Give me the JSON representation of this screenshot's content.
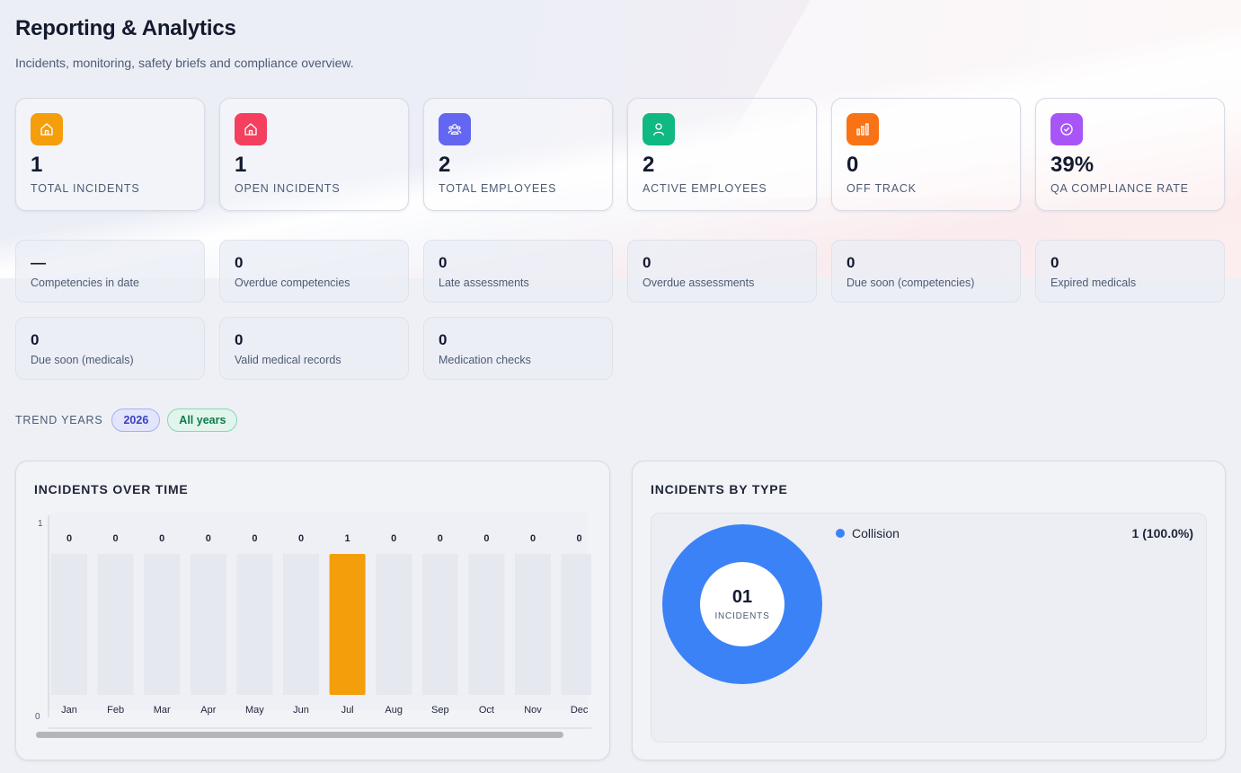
{
  "page": {
    "title": "Reporting & Analytics",
    "subtitle": "Incidents, monitoring, safety briefs and compliance overview."
  },
  "stats": [
    {
      "value": "1",
      "label": "TOTAL INCIDENTS",
      "icon": "house-icon",
      "color": "#f59e0b"
    },
    {
      "value": "1",
      "label": "OPEN INCIDENTS",
      "icon": "house-icon",
      "color": "#f43f5e"
    },
    {
      "value": "2",
      "label": "TOTAL EMPLOYEES",
      "icon": "users-icon",
      "color": "#6366f1"
    },
    {
      "value": "2",
      "label": "ACTIVE EMPLOYEES",
      "icon": "user-icon",
      "color": "#10b981"
    },
    {
      "value": "0",
      "label": "OFF TRACK",
      "icon": "bar-chart-icon",
      "color": "#f97316"
    },
    {
      "value": "39%",
      "label": "QA COMPLIANCE RATE",
      "icon": "check-circle-icon",
      "color": "#a855f7"
    }
  ],
  "metrics": [
    {
      "value": "—",
      "label": "Competencies in date"
    },
    {
      "value": "0",
      "label": "Overdue competencies"
    },
    {
      "value": "0",
      "label": "Late assessments"
    },
    {
      "value": "0",
      "label": "Overdue assessments"
    },
    {
      "value": "0",
      "label": "Due soon (competencies)"
    },
    {
      "value": "0",
      "label": "Expired medicals"
    },
    {
      "value": "0",
      "label": "Due soon (medicals)"
    },
    {
      "value": "0",
      "label": "Valid medical records"
    },
    {
      "value": "0",
      "label": "Medication checks"
    }
  ],
  "trend": {
    "label": "TREND YEARS",
    "years": [
      "2026",
      "All years"
    ]
  },
  "incidents_over_time": {
    "title": "INCIDENTS OVER TIME"
  },
  "incidents_by_type": {
    "title": "INCIDENTS BY TYPE",
    "center_value": "01",
    "center_caption": "INCIDENTS",
    "legend": [
      {
        "name": "Collision",
        "value": "1 (100.0%)",
        "color": "#3b82f6"
      }
    ]
  },
  "chart_data": [
    {
      "type": "bar",
      "title": "INCIDENTS OVER TIME",
      "categories": [
        "Jan",
        "Feb",
        "Mar",
        "Apr",
        "May",
        "Jun",
        "Jul",
        "Aug",
        "Sep",
        "Oct",
        "Nov",
        "Dec"
      ],
      "values": [
        0,
        0,
        0,
        0,
        0,
        0,
        1,
        0,
        0,
        0,
        0,
        0
      ],
      "ylim": [
        0,
        1
      ],
      "yticks": [
        "0",
        "1"
      ],
      "bar_color": "#f59e0b",
      "track_color": "#e6e8f0"
    },
    {
      "type": "pie",
      "title": "INCIDENTS BY TYPE",
      "categories": [
        "Collision"
      ],
      "values": [
        1
      ],
      "colors": [
        "#3b82f6"
      ]
    }
  ]
}
